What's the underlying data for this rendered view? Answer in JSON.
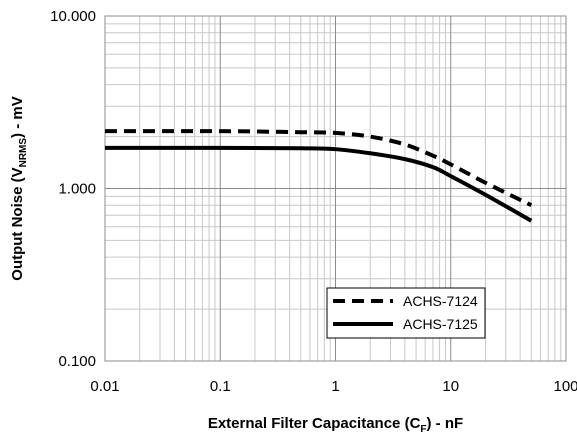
{
  "chart_data": {
    "type": "line",
    "x_scale": "log",
    "y_scale": "log",
    "xlim": [
      0.01,
      100
    ],
    "ylim": [
      0.1,
      10
    ],
    "xlabel": {
      "main": "External Filter Capacitance (C",
      "sub": "F",
      "tail": ")  - nF"
    },
    "ylabel": {
      "main": "Output Noise (V",
      "sub": "NRMS",
      "tail": ")  - mV"
    },
    "x_ticks": [
      {
        "value": 0.01,
        "label": "0.01"
      },
      {
        "value": 0.1,
        "label": "0.1"
      },
      {
        "value": 1,
        "label": "1"
      },
      {
        "value": 10,
        "label": "10"
      },
      {
        "value": 100,
        "label": "100"
      }
    ],
    "y_ticks": [
      {
        "value": 0.1,
        "label": "0.100"
      },
      {
        "value": 1,
        "label": "1.000"
      },
      {
        "value": 10,
        "label": "10.000"
      }
    ],
    "grid": true,
    "legend_position": "bottom-right",
    "series": [
      {
        "name": "ACHS-7124",
        "style": "dashed",
        "color": "#000000",
        "points": [
          [
            0.01,
            2.15
          ],
          [
            0.1,
            2.15
          ],
          [
            0.5,
            2.12
          ],
          [
            1,
            2.1
          ],
          [
            2,
            2.0
          ],
          [
            4,
            1.8
          ],
          [
            7,
            1.55
          ],
          [
            10,
            1.38
          ],
          [
            20,
            1.08
          ],
          [
            50,
            0.8
          ]
        ]
      },
      {
        "name": "ACHS-7125",
        "style": "solid",
        "color": "#000000",
        "points": [
          [
            0.01,
            1.72
          ],
          [
            0.1,
            1.72
          ],
          [
            0.5,
            1.71
          ],
          [
            1,
            1.69
          ],
          [
            2,
            1.6
          ],
          [
            4,
            1.48
          ],
          [
            7,
            1.33
          ],
          [
            10,
            1.18
          ],
          [
            20,
            0.92
          ],
          [
            50,
            0.65
          ]
        ]
      }
    ]
  }
}
